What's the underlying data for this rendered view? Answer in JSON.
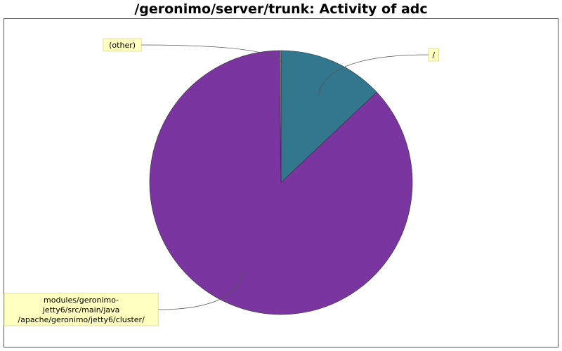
{
  "title": "/geronimo/server/trunk: Activity of adc",
  "chart_data": {
    "type": "pie",
    "title": "/geronimo/server/trunk: Activity of adc",
    "slices": [
      {
        "label": "/",
        "value": 13.0,
        "color": "#33778e"
      },
      {
        "label": "modules/geronimo-jetty6/src/main/java/apache/geronimo/jetty6/cluster/",
        "label_lines": [
          "modules/geronimo-",
          "jetty6/src/main/java",
          "/apache/geronimo/jetty6/cluster/"
        ],
        "value": 86.8,
        "color": "#7b35a0"
      },
      {
        "label": "(other)",
        "value": 0.2,
        "color": "#888888"
      }
    ],
    "legend": false
  }
}
